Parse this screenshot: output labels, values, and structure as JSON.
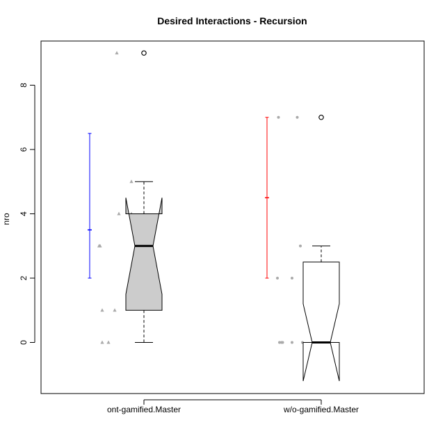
{
  "chart_data": {
    "type": "boxplot",
    "title": "Desired Interactions - Recursion",
    "xlabel": "",
    "ylabel": "nro",
    "ylim": [
      -1.6,
      9.4
    ],
    "y_ticks": [
      0,
      2,
      4,
      6,
      8
    ],
    "y_tick_labels": [
      "0",
      "2",
      "4",
      "6",
      "8"
    ],
    "categories": [
      "ont-gamified.Master",
      "w/o-gamified.Master"
    ],
    "colors": {
      "box_fill_group1": "#cccccc",
      "box_fill_group2": "#ffffff",
      "errorbar_group1": "#0000ff",
      "errorbar_group2": "#ff0000",
      "points": "#aaaaaa",
      "ink": "#000000"
    },
    "groups": [
      {
        "label": "ont-gamified.Master",
        "box": {
          "whisker_low": 0,
          "q1": 1,
          "median": 3,
          "q3": 4,
          "whisker_high": 5,
          "notch_low": 1.5,
          "notch_high": 4.5
        },
        "outliers": [
          9
        ],
        "mean_errorbar": {
          "mean": 3.5,
          "low": 2,
          "high": 6.5
        },
        "points": [
          {
            "x": -0.26,
            "y": 9
          },
          {
            "x": -0.42,
            "y": 3
          },
          {
            "x": -0.12,
            "y": 5
          },
          {
            "x": -0.24,
            "y": 4
          },
          {
            "x": -0.12,
            "y": 4
          },
          {
            "x": -0.43,
            "y": 3
          },
          {
            "x": -0.4,
            "y": 1
          },
          {
            "x": -0.28,
            "y": 1
          },
          {
            "x": -0.4,
            "y": 0
          },
          {
            "x": -0.34,
            "y": 0
          }
        ]
      },
      {
        "label": "w/o-gamified.Master",
        "box": {
          "whisker_low": 0,
          "q1": 0,
          "median": 0,
          "q3": 2.5,
          "whisker_high": 3,
          "notch_low": -1.2,
          "notch_high": 1.2
        },
        "outliers": [
          7
        ],
        "mean_errorbar": {
          "mean": 4.5,
          "low": 2,
          "high": 7
        },
        "points": [
          {
            "x": -0.41,
            "y": 7
          },
          {
            "x": -0.23,
            "y": 7
          },
          {
            "x": -0.42,
            "y": 2
          },
          {
            "x": -0.28,
            "y": 2
          },
          {
            "x": -0.2,
            "y": 3
          },
          {
            "x": -0.4,
            "y": 0
          },
          {
            "x": -0.38,
            "y": 0
          },
          {
            "x": -0.37,
            "y": 0
          },
          {
            "x": -0.28,
            "y": 0
          },
          {
            "x": -0.18,
            "y": 0
          }
        ]
      }
    ]
  }
}
